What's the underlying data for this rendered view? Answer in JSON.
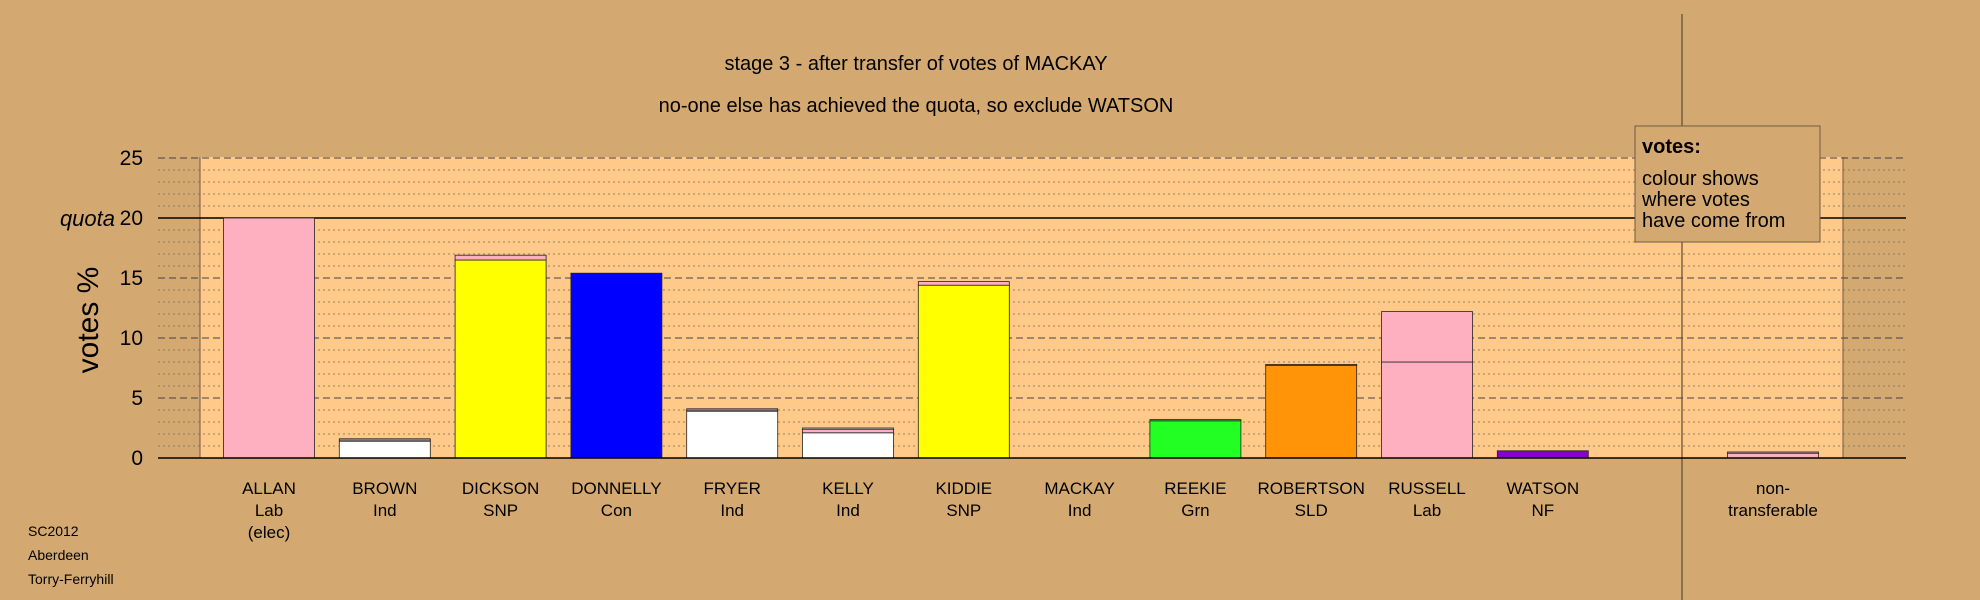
{
  "chart_data": {
    "type": "bar",
    "title": "stage 3 - after transfer of votes of MACKAY",
    "subtitle": "no-one else has achieved the quota, so exclude WATSON",
    "ylabel": "votes %",
    "ylim": [
      0,
      25
    ],
    "yticks": [
      0,
      5,
      10,
      15,
      20,
      25
    ],
    "quota": 20,
    "quota_label": "quota",
    "grid": true,
    "categories": [
      {
        "name": "ALLAN",
        "party": "Lab",
        "note": "(elec)",
        "color": "#FFB0C0",
        "segments": [
          {
            "value": 20.0,
            "color": "#FFB0C0"
          }
        ]
      },
      {
        "name": "BROWN",
        "party": "Ind",
        "note": "",
        "color": "#FFFFFF",
        "segments": [
          {
            "value": 1.4,
            "color": "#FFFFFF"
          },
          {
            "value": 0.1,
            "color": "#FFFFFF"
          },
          {
            "value": 0.1,
            "color": "#FFFFFF"
          }
        ]
      },
      {
        "name": "DICKSON",
        "party": "SNP",
        "note": "",
        "color": "#FFFF00",
        "segments": [
          {
            "value": 16.5,
            "color": "#FFFF00"
          },
          {
            "value": 0.4,
            "color": "#FFB0C0"
          }
        ]
      },
      {
        "name": "DONNELLY",
        "party": "Con",
        "note": "",
        "color": "#0000FF",
        "segments": [
          {
            "value": 15.2,
            "color": "#0000FF"
          },
          {
            "value": 0.2,
            "color": "#0000FF"
          }
        ]
      },
      {
        "name": "FRYER",
        "party": "Ind",
        "note": "",
        "color": "#FFFFFF",
        "segments": [
          {
            "value": 3.9,
            "color": "#FFFFFF"
          },
          {
            "value": 0.1,
            "color": "#FFB0C0"
          },
          {
            "value": 0.1,
            "color": "#FFFFFF"
          }
        ]
      },
      {
        "name": "KELLY",
        "party": "Ind",
        "note": "",
        "color": "#FFFFFF",
        "segments": [
          {
            "value": 2.1,
            "color": "#FFFFFF"
          },
          {
            "value": 0.3,
            "color": "#FFB0C0"
          },
          {
            "value": 0.1,
            "color": "#FFFFFF"
          }
        ]
      },
      {
        "name": "KIDDIE",
        "party": "SNP",
        "note": "",
        "color": "#FFFF00",
        "segments": [
          {
            "value": 14.4,
            "color": "#FFFF00"
          },
          {
            "value": 0.3,
            "color": "#FFB0C0"
          }
        ]
      },
      {
        "name": "MACKAY",
        "party": "Ind",
        "note": "",
        "color": "#FFFFFF",
        "segments": []
      },
      {
        "name": "REEKIE",
        "party": "Grn",
        "note": "",
        "color": "#22FF22",
        "segments": [
          {
            "value": 3.1,
            "color": "#22FF22"
          },
          {
            "value": 0.1,
            "color": "#22FF22"
          }
        ]
      },
      {
        "name": "ROBERTSON",
        "party": "SLD",
        "note": "",
        "color": "#FF9408",
        "segments": [
          {
            "value": 7.7,
            "color": "#FF9408"
          },
          {
            "value": 0.1,
            "color": "#FF9408"
          }
        ]
      },
      {
        "name": "RUSSELL",
        "party": "Lab",
        "note": "",
        "color": "#FFB0C0",
        "segments": [
          {
            "value": 8.0,
            "color": "#FFB0C0"
          },
          {
            "value": 4.2,
            "color": "#FFB0C0"
          }
        ]
      },
      {
        "name": "WATSON",
        "party": "NF",
        "note": "",
        "color": "#8800CC",
        "segments": [
          {
            "value": 0.6,
            "color": "#8800CC"
          }
        ]
      }
    ],
    "nontransferable": {
      "line1": "non-",
      "line2": "transferable",
      "segments": [
        {
          "value": 0.4,
          "color": "#FFB0C0"
        },
        {
          "value": 0.1,
          "color": "#FFB0C0"
        }
      ]
    },
    "legend": {
      "title": "votes:",
      "lines": [
        "colour shows",
        "where votes",
        "have come from"
      ]
    }
  },
  "footer": [
    "SC2012",
    "Aberdeen",
    "Torry-Ferryhill"
  ]
}
